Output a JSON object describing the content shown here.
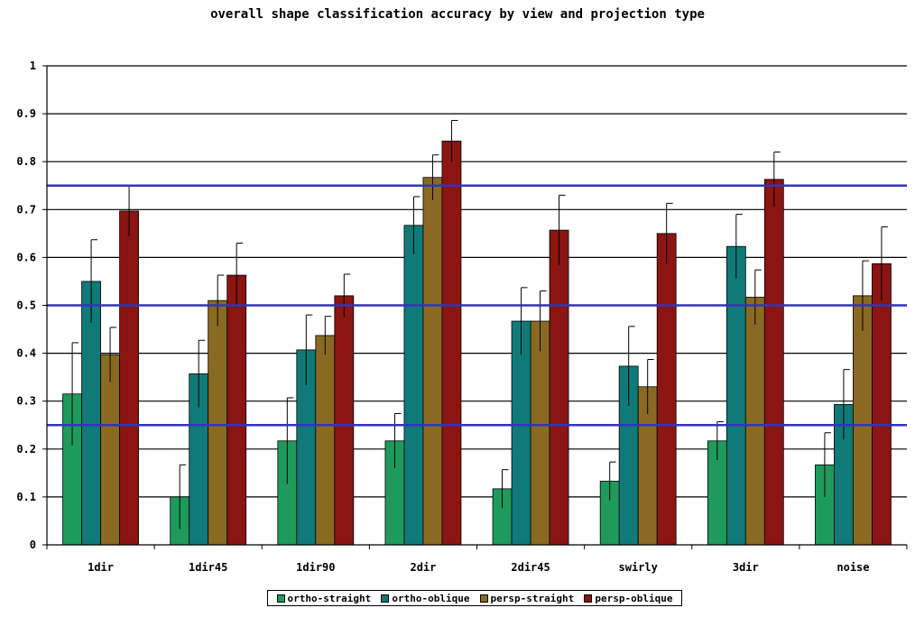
{
  "chart_data": {
    "type": "bar",
    "title": "overall shape classification accuracy by view and projection type",
    "xlabel": "",
    "ylabel": "",
    "ylim": [
      0,
      1
    ],
    "yticks": [
      "0",
      "0.1",
      "0.2",
      "0.3",
      "0.4",
      "0.5",
      "0.6",
      "0.7",
      "0.8",
      "0.9",
      "1"
    ],
    "grid": true,
    "legend_position": "bottom",
    "categories": [
      "1dir",
      "1dir45",
      "1dir90",
      "2dir",
      "2dir45",
      "swirly",
      "3dir",
      "noise"
    ],
    "series": [
      {
        "name": "ortho-straight",
        "color": "#1e9a5c",
        "values": [
          0.315,
          0.1,
          0.217,
          0.217,
          0.117,
          0.133,
          0.217,
          0.167
        ],
        "errors": [
          0.107,
          0.067,
          0.09,
          0.057,
          0.04,
          0.04,
          0.04,
          0.067
        ]
      },
      {
        "name": "ortho-oblique",
        "color": "#0f7a78",
        "values": [
          0.55,
          0.357,
          0.407,
          0.667,
          0.467,
          0.373,
          0.623,
          0.293
        ],
        "errors": [
          0.087,
          0.07,
          0.073,
          0.06,
          0.07,
          0.083,
          0.067,
          0.073
        ]
      },
      {
        "name": "persp-straight",
        "color": "#8a6a22",
        "values": [
          0.397,
          0.51,
          0.437,
          0.767,
          0.467,
          0.33,
          0.517,
          0.52
        ],
        "errors": [
          0.057,
          0.053,
          0.04,
          0.047,
          0.063,
          0.057,
          0.057,
          0.073
        ]
      },
      {
        "name": "persp-oblique",
        "color": "#8a1512",
        "values": [
          0.697,
          0.563,
          0.52,
          0.843,
          0.657,
          0.65,
          0.763,
          0.587
        ],
        "errors": [
          0.053,
          0.067,
          0.045,
          0.043,
          0.073,
          0.063,
          0.057,
          0.077
        ]
      }
    ],
    "reference_lines": [
      {
        "value": 0.75,
        "color": "#3333bb"
      },
      {
        "value": 0.5,
        "color": "#3333bb"
      },
      {
        "value": 0.25,
        "color": "#3333bb"
      }
    ]
  }
}
